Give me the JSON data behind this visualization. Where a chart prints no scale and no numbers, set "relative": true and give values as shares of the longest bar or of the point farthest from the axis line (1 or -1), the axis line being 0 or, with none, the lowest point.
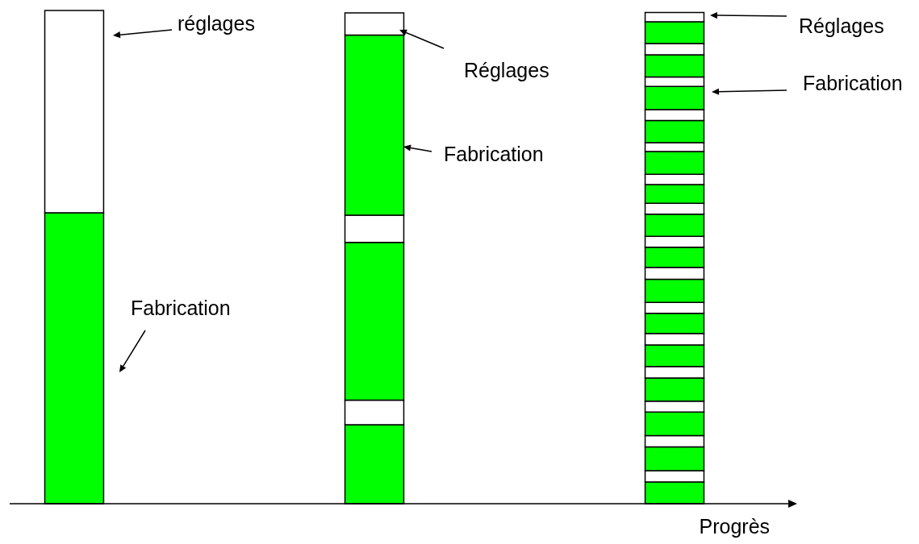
{
  "chart_data": {
    "type": "bar",
    "stacked": true,
    "relative": true,
    "xlabel": "Progrès",
    "categories": [
      null,
      null,
      null
    ],
    "series": [
      {
        "color": "#00ff00",
        "values": [
          0.59,
          0.16,
          0.044
        ]
      },
      {
        "color": "#ffffff",
        "values": [
          0.41,
          0.05,
          0.023
        ]
      },
      {
        "color": "#00ff00",
        "values": [
          null,
          0.32,
          0.048
        ]
      },
      {
        "color": "#ffffff",
        "values": [
          null,
          0.055,
          0.023
        ]
      },
      {
        "color": "#00ff00",
        "values": [
          null,
          0.365,
          0.048
        ]
      },
      {
        "color": "#ffffff",
        "values": [
          null,
          0.045,
          0.022
        ]
      },
      {
        "color": "#00ff00",
        "values": [
          null,
          null,
          0.047
        ]
      },
      {
        "color": "#ffffff",
        "values": [
          null,
          null,
          0.023
        ]
      },
      {
        "color": "#00ff00",
        "values": [
          null,
          null,
          0.044
        ]
      },
      {
        "color": "#ffffff",
        "values": [
          null,
          null,
          0.023
        ]
      },
      {
        "color": "#00ff00",
        "values": [
          null,
          null,
          0.041
        ]
      },
      {
        "color": "#ffffff",
        "values": [
          null,
          null,
          0.022
        ]
      },
      {
        "color": "#00ff00",
        "values": [
          null,
          null,
          0.047
        ]
      },
      {
        "color": "#ffffff",
        "values": [
          null,
          null,
          0.024
        ]
      },
      {
        "color": "#00ff00",
        "values": [
          null,
          null,
          0.041
        ]
      },
      {
        "color": "#ffffff",
        "values": [
          null,
          null,
          0.022
        ]
      },
      {
        "color": "#00ff00",
        "values": [
          null,
          null,
          0.045
        ]
      },
      {
        "color": "#ffffff",
        "values": [
          null,
          null,
          0.022
        ]
      },
      {
        "color": "#00ff00",
        "values": [
          null,
          null,
          0.038
        ]
      },
      {
        "color": "#ffffff",
        "values": [
          null,
          null,
          0.021
        ]
      },
      {
        "color": "#00ff00",
        "values": [
          null,
          null,
          0.046
        ]
      },
      {
        "color": "#ffffff",
        "values": [
          null,
          null,
          0.018
        ]
      },
      {
        "color": "#00ff00",
        "values": [
          null,
          null,
          0.045
        ]
      },
      {
        "color": "#ffffff",
        "values": [
          null,
          null,
          0.022
        ]
      },
      {
        "color": "#00ff00",
        "values": [
          null,
          null,
          0.047
        ]
      },
      {
        "color": "#ffffff",
        "values": [
          null,
          null,
          0.019
        ]
      },
      {
        "color": "#00ff00",
        "values": [
          null,
          null,
          0.045
        ]
      },
      {
        "color": "#ffffff",
        "values": [
          null,
          null,
          0.023
        ]
      },
      {
        "color": "#00ff00",
        "values": [
          null,
          null,
          0.044
        ]
      },
      {
        "color": "#ffffff",
        "values": [
          null,
          null,
          0.019
        ]
      }
    ],
    "annotations": [
      "réglages",
      "Fabrication",
      "Réglages",
      "Fabrication",
      "Réglages",
      "Fabrication"
    ]
  }
}
